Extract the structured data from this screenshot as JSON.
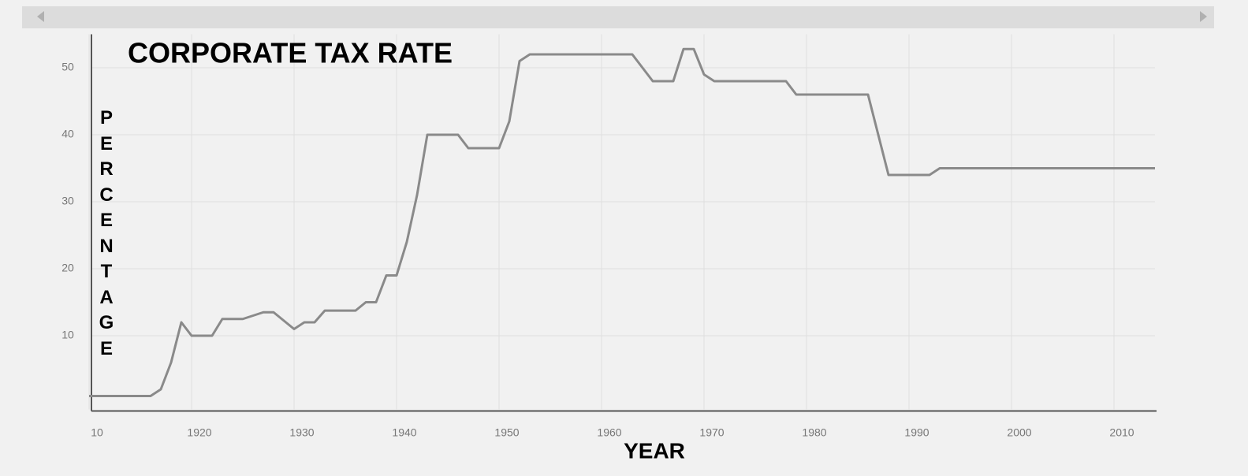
{
  "chart_data": {
    "type": "line",
    "title": "CORPORATE TAX RATE",
    "x_label": "YEAR",
    "y_label": "PERCENTAGE",
    "x": [
      1910,
      1916,
      1917,
      1918,
      1919,
      1920,
      1922,
      1923,
      1925,
      1927,
      1928,
      1930,
      1931,
      1932,
      1933,
      1936,
      1937,
      1938,
      1939,
      1940,
      1941,
      1942,
      1943,
      1946,
      1947,
      1950,
      1951,
      1952,
      1953,
      1963,
      1964,
      1965,
      1967,
      1968,
      1969,
      1970,
      1971,
      1978,
      1979,
      1986,
      1987,
      1988,
      1992,
      1993,
      2014
    ],
    "series": [
      {
        "color": "#8a8a8a",
        "values": [
          1,
          1,
          2,
          6,
          12,
          10,
          10,
          12.5,
          12.5,
          13.5,
          13.5,
          11,
          12,
          12,
          13.75,
          13.75,
          15,
          15,
          19,
          19,
          24,
          31,
          40,
          40,
          38,
          38,
          42,
          51,
          52,
          52,
          50,
          48,
          48,
          52.8,
          52.8,
          49,
          48,
          48,
          46,
          46,
          40,
          34,
          34,
          35,
          35
        ]
      }
    ],
    "xlim": [
      1910,
      2014
    ],
    "xticks": [
      {
        "value": 1910,
        "label": "10"
      },
      1920,
      1930,
      1940,
      1950,
      1960,
      1970,
      1980,
      1990,
      2000,
      2010
    ],
    "ylim": [
      -1,
      55
    ],
    "yticks": [
      10,
      20,
      30,
      40,
      50
    ],
    "grid": true
  }
}
